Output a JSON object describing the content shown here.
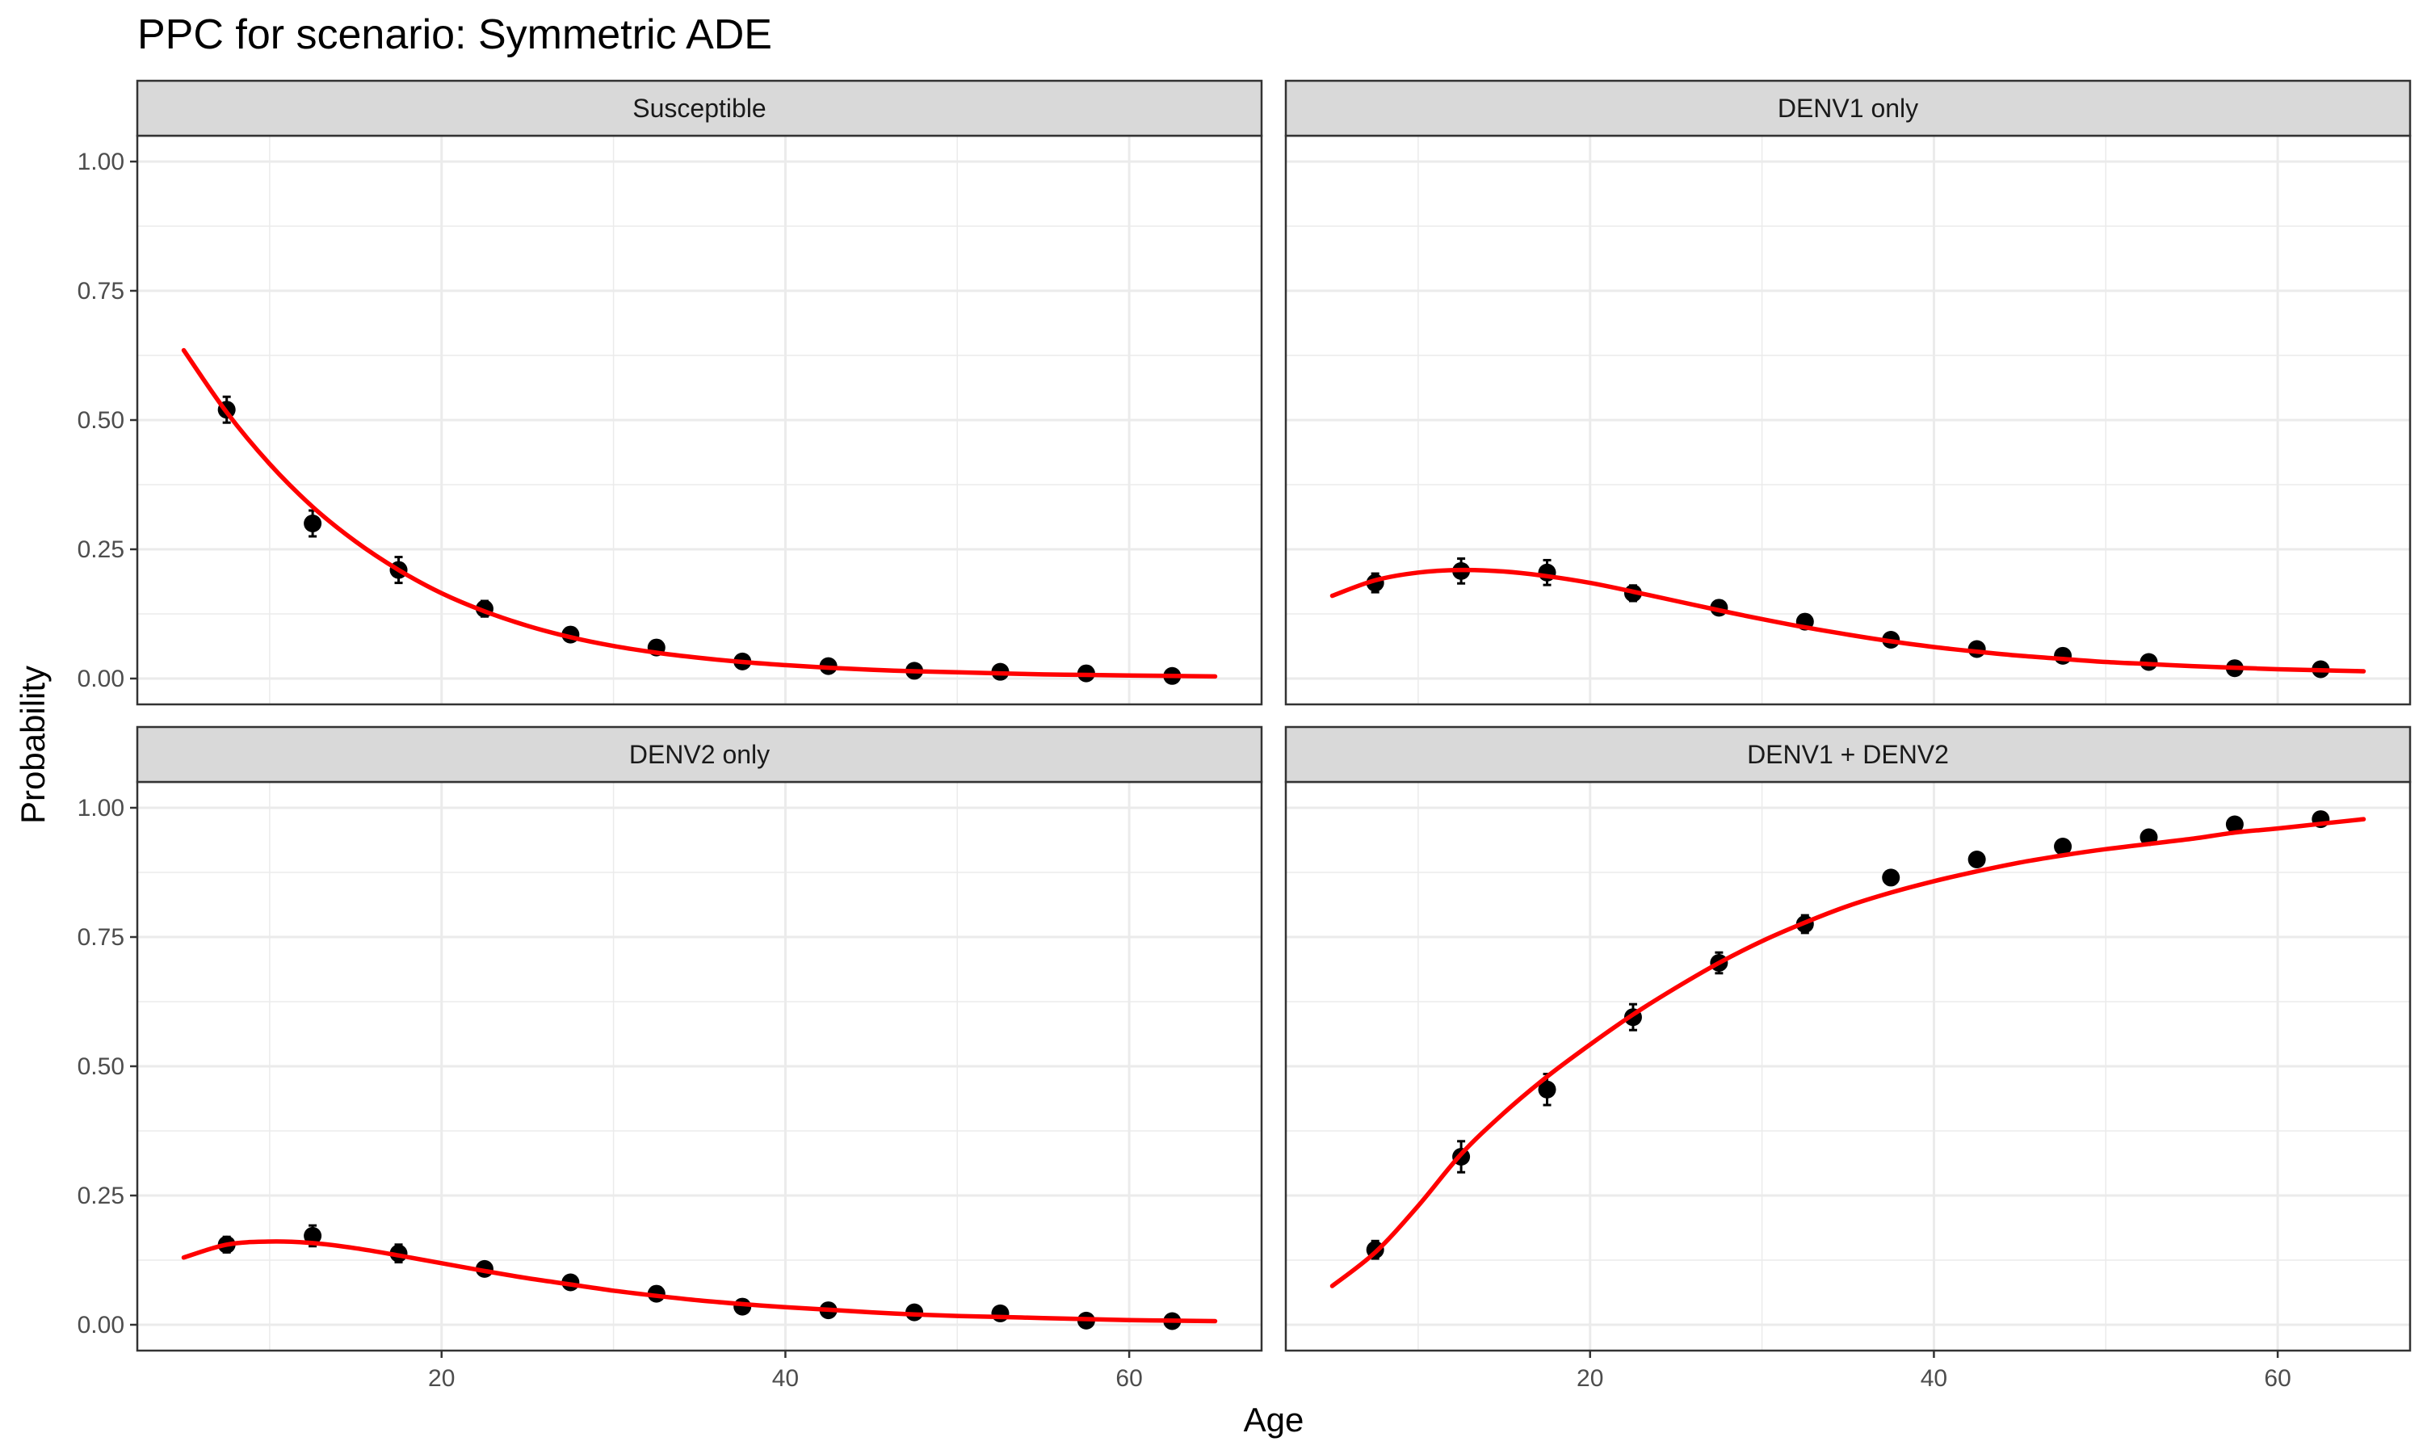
{
  "chart_data": {
    "type": "line",
    "title": "PPC for scenario: Symmetric ADE",
    "xlabel": "Age",
    "ylabel": "Probability",
    "xlim": [
      2.3,
      67.7
    ],
    "ylim": [
      -0.05,
      1.05
    ],
    "x_ticks": [
      20,
      40,
      60
    ],
    "x_tick_labels": [
      "20",
      "40",
      "60"
    ],
    "y_ticks": [
      0,
      0.25,
      0.5,
      0.75,
      1
    ],
    "y_tick_labels": [
      "0.00",
      "0.25",
      "0.50",
      "0.75",
      "1.00"
    ],
    "grid": true,
    "legend": "none",
    "colors": {
      "fit_line": "#ff0000",
      "points": "#000000",
      "strip_fill": "#d9d9d9",
      "panel_border": "#333333",
      "grid": "#ebebeb"
    },
    "facet_layout": "2x2",
    "panels": [
      {
        "label": "Susceptible",
        "observed": {
          "x": [
            7.5,
            12.5,
            17.5,
            22.5,
            27.5,
            32.5,
            37.5,
            42.5,
            47.5,
            52.5,
            57.5,
            62.5
          ],
          "y": [
            0.52,
            0.3,
            0.21,
            0.135,
            0.085,
            0.06,
            0.033,
            0.024,
            0.015,
            0.013,
            0.01,
            0.005
          ],
          "lower": [
            0.495,
            0.275,
            0.185,
            0.12,
            0.076,
            0.052,
            0.027,
            0.019,
            0.011,
            0.009,
            0.006,
            0.002
          ],
          "upper": [
            0.545,
            0.325,
            0.235,
            0.15,
            0.094,
            0.068,
            0.039,
            0.029,
            0.019,
            0.017,
            0.014,
            0.008
          ]
        },
        "fitted": {
          "x": [
            5,
            7.5,
            10,
            12.5,
            15,
            17.5,
            20,
            22.5,
            25,
            27.5,
            30,
            32.5,
            35,
            37.5,
            40,
            42.5,
            45,
            47.5,
            50,
            52.5,
            55,
            57.5,
            60,
            62.5,
            65
          ],
          "y": [
            0.635,
            0.515,
            0.415,
            0.332,
            0.265,
            0.21,
            0.165,
            0.13,
            0.102,
            0.08,
            0.063,
            0.05,
            0.04,
            0.032,
            0.026,
            0.021,
            0.017,
            0.014,
            0.012,
            0.01,
            0.008,
            0.007,
            0.006,
            0.005,
            0.004
          ]
        }
      },
      {
        "label": "DENV1 only",
        "observed": {
          "x": [
            7.5,
            12.5,
            17.5,
            22.5,
            27.5,
            32.5,
            37.5,
            42.5,
            47.5,
            52.5,
            57.5,
            62.5
          ],
          "y": [
            0.185,
            0.208,
            0.205,
            0.165,
            0.137,
            0.11,
            0.075,
            0.057,
            0.044,
            0.032,
            0.02,
            0.018
          ],
          "lower": [
            0.167,
            0.184,
            0.181,
            0.15,
            0.124,
            0.1,
            0.066,
            0.049,
            0.038,
            0.026,
            0.015,
            0.013
          ],
          "upper": [
            0.203,
            0.232,
            0.229,
            0.18,
            0.15,
            0.12,
            0.084,
            0.065,
            0.05,
            0.038,
            0.025,
            0.023
          ]
        },
        "fitted": {
          "x": [
            5,
            7.5,
            10,
            12.5,
            15,
            17.5,
            20,
            22.5,
            25,
            27.5,
            30,
            32.5,
            35,
            37.5,
            40,
            42.5,
            45,
            47.5,
            50,
            52.5,
            55,
            57.5,
            60,
            62.5,
            65
          ],
          "y": [
            0.16,
            0.19,
            0.205,
            0.21,
            0.207,
            0.198,
            0.185,
            0.168,
            0.15,
            0.132,
            0.115,
            0.099,
            0.085,
            0.072,
            0.061,
            0.052,
            0.044,
            0.038,
            0.032,
            0.028,
            0.024,
            0.021,
            0.018,
            0.016,
            0.014
          ]
        }
      },
      {
        "label": "DENV2 only",
        "observed": {
          "x": [
            7.5,
            12.5,
            17.5,
            22.5,
            27.5,
            32.5,
            37.5,
            42.5,
            47.5,
            52.5,
            57.5,
            62.5
          ],
          "y": [
            0.155,
            0.172,
            0.138,
            0.108,
            0.082,
            0.06,
            0.035,
            0.028,
            0.024,
            0.022,
            0.008,
            0.007
          ],
          "lower": [
            0.14,
            0.152,
            0.121,
            0.097,
            0.074,
            0.053,
            0.029,
            0.023,
            0.019,
            0.017,
            0.005,
            0.004
          ],
          "upper": [
            0.17,
            0.192,
            0.155,
            0.119,
            0.09,
            0.067,
            0.041,
            0.033,
            0.029,
            0.027,
            0.011,
            0.01
          ]
        },
        "fitted": {
          "x": [
            5,
            7.5,
            10,
            12.5,
            15,
            17.5,
            20,
            22.5,
            25,
            27.5,
            30,
            32.5,
            35,
            37.5,
            40,
            42.5,
            45,
            47.5,
            50,
            52.5,
            55,
            57.5,
            60,
            62.5,
            65
          ],
          "y": [
            0.13,
            0.155,
            0.161,
            0.158,
            0.148,
            0.134,
            0.119,
            0.104,
            0.09,
            0.078,
            0.066,
            0.056,
            0.047,
            0.04,
            0.034,
            0.029,
            0.024,
            0.02,
            0.017,
            0.015,
            0.013,
            0.011,
            0.009,
            0.008,
            0.007
          ]
        }
      },
      {
        "label": "DENV1 + DENV2",
        "observed": {
          "x": [
            7.5,
            12.5,
            17.5,
            22.5,
            27.5,
            32.5,
            37.5,
            42.5,
            47.5,
            52.5,
            57.5,
            62.5
          ],
          "y": [
            0.145,
            0.325,
            0.455,
            0.595,
            0.7,
            0.775,
            0.865,
            0.9,
            0.925,
            0.943,
            0.968,
            0.978
          ],
          "lower": [
            0.128,
            0.295,
            0.425,
            0.57,
            0.68,
            0.758,
            0.852,
            0.89,
            0.915,
            0.935,
            0.962,
            0.973
          ],
          "upper": [
            0.162,
            0.355,
            0.485,
            0.62,
            0.72,
            0.792,
            0.878,
            0.91,
            0.935,
            0.951,
            0.974,
            0.983
          ]
        },
        "fitted": {
          "x": [
            5,
            7.5,
            10,
            12.5,
            15,
            17.5,
            20,
            22.5,
            25,
            27.5,
            30,
            32.5,
            35,
            37.5,
            40,
            42.5,
            45,
            47.5,
            50,
            52.5,
            55,
            57.5,
            60,
            62.5,
            65
          ],
          "y": [
            0.075,
            0.14,
            0.23,
            0.33,
            0.41,
            0.48,
            0.542,
            0.6,
            0.652,
            0.7,
            0.742,
            0.778,
            0.81,
            0.836,
            0.858,
            0.877,
            0.894,
            0.908,
            0.92,
            0.93,
            0.94,
            0.952,
            0.96,
            0.969,
            0.978
          ]
        }
      }
    ]
  }
}
